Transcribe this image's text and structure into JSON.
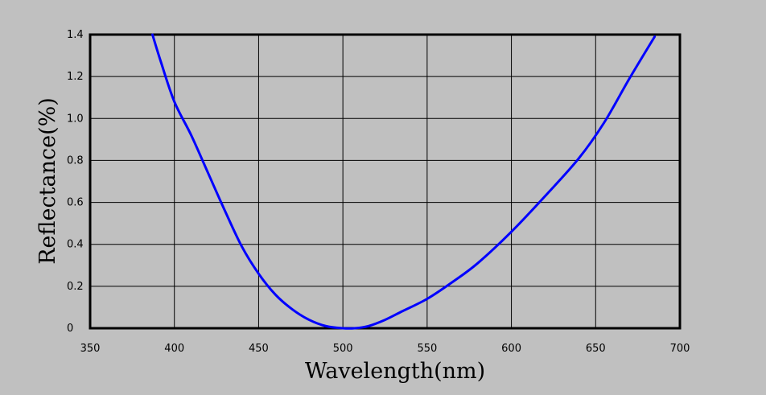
{
  "chart_data": {
    "type": "line",
    "title": "",
    "xlabel": "Wavelength(nm)",
    "ylabel": "Reflectance(%)",
    "xlim": [
      350,
      700
    ],
    "ylim": [
      0,
      1.4
    ],
    "x_ticks": [
      "350",
      "400",
      "450",
      "500",
      "550",
      "600",
      "650",
      "700"
    ],
    "y_ticks": [
      "0",
      "0.2",
      "0.4",
      "0.6",
      "0.8",
      "1.0",
      "1.2",
      "1.4"
    ],
    "grid": true,
    "legend": "none",
    "series": [
      {
        "color": "#0000ff",
        "x": [
          387,
          392,
          400,
          410,
          420,
          430,
          440,
          450,
          460,
          470,
          480,
          490,
          500,
          507,
          515,
          525,
          535,
          550,
          565,
          580,
          600,
          620,
          640,
          655,
          670,
          685
        ],
        "y": [
          1.4,
          1.27,
          1.08,
          0.92,
          0.74,
          0.56,
          0.39,
          0.26,
          0.16,
          0.09,
          0.04,
          0.01,
          0.0,
          0.0,
          0.01,
          0.04,
          0.08,
          0.14,
          0.22,
          0.31,
          0.46,
          0.63,
          0.81,
          0.98,
          1.19,
          1.39
        ]
      }
    ]
  }
}
